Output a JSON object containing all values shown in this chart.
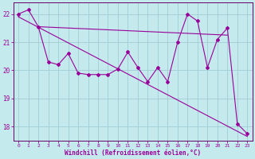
{
  "background_color": "#c5eaee",
  "grid_color": "#a0cdd4",
  "line_color": "#990099",
  "spine_color": "#660066",
  "xlabel": "Windchill (Refroidissement éolien,°C)",
  "ylim": [
    17.5,
    22.4
  ],
  "yticks": [
    18,
    19,
    20,
    21,
    22
  ],
  "xlim": [
    -0.5,
    23.5
  ],
  "xticks": [
    0,
    1,
    2,
    3,
    4,
    5,
    6,
    7,
    8,
    9,
    10,
    11,
    12,
    13,
    14,
    15,
    16,
    17,
    18,
    19,
    20,
    21,
    22,
    23
  ],
  "series1_y": [
    22.0,
    22.15,
    21.55,
    20.3,
    20.2,
    20.6,
    19.9,
    19.85,
    19.85,
    19.85,
    20.05,
    20.65,
    20.1,
    19.6,
    20.1,
    19.6,
    21.0,
    22.0,
    21.75,
    20.1,
    21.1,
    21.5,
    18.1,
    17.75
  ],
  "series2_x": [
    0,
    23
  ],
  "series2_y": [
    21.9,
    17.65
  ],
  "series3_x": [
    2,
    21
  ],
  "series3_y": [
    21.55,
    21.25
  ],
  "marker": "D",
  "markersize": 2.0,
  "linewidth": 0.8
}
